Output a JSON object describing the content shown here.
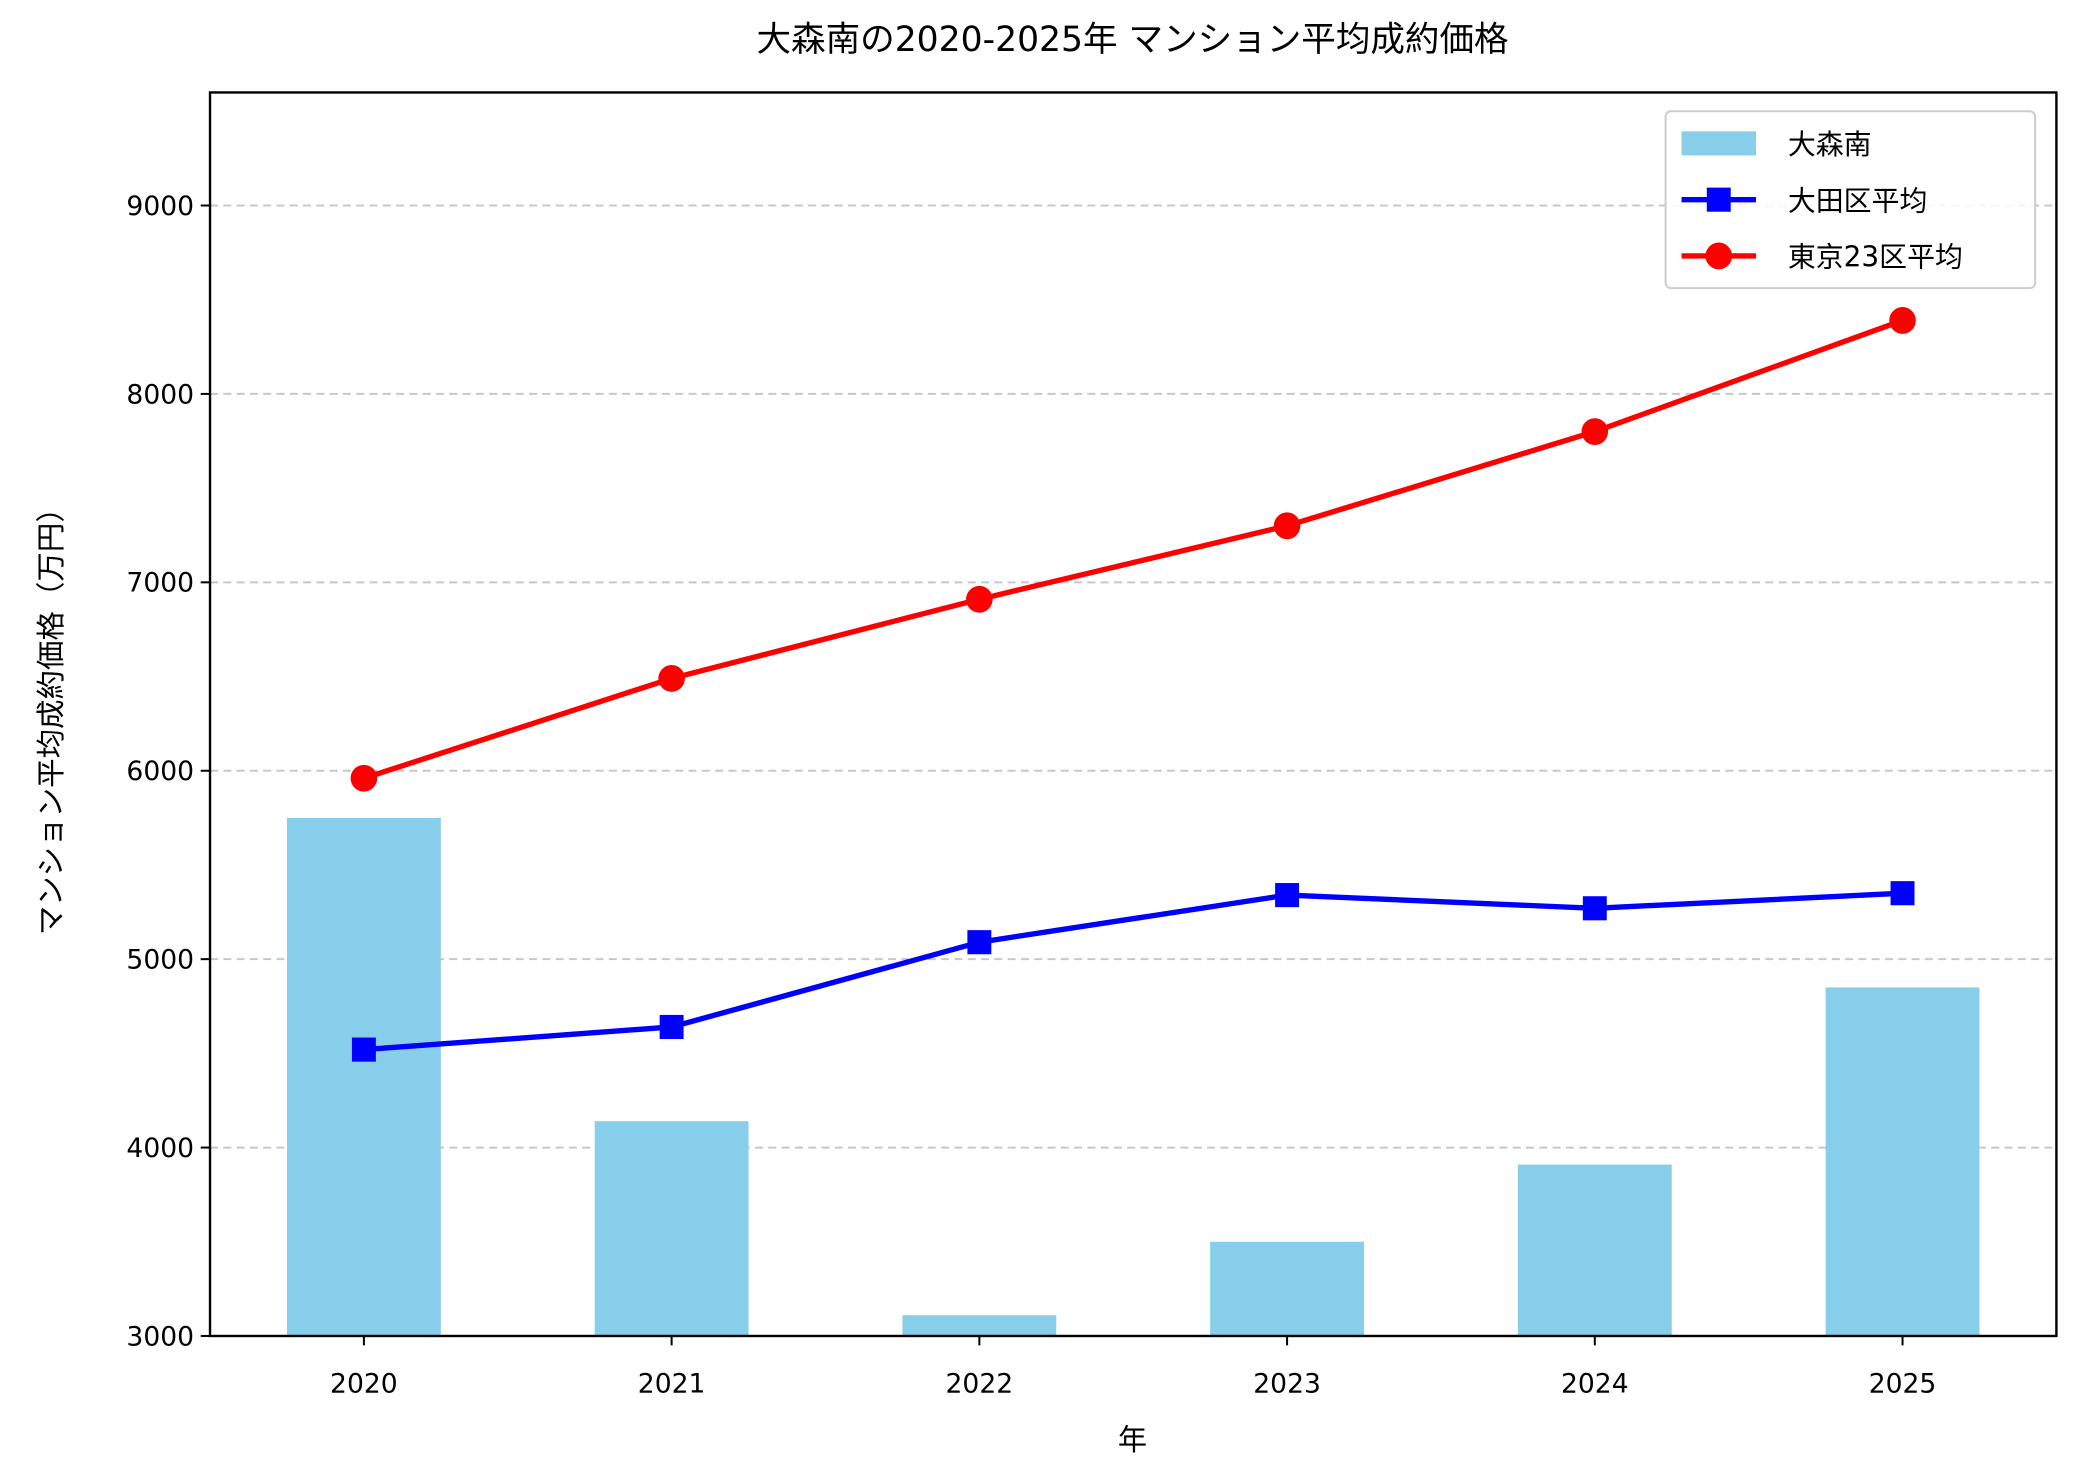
{
  "chart_data": {
    "type": "combo",
    "title": "大森南の2020-2025年 マンション平均成約価格",
    "xlabel": "年",
    "ylabel": "マンション平均成約価格（万円）",
    "categories": [
      "2020",
      "2021",
      "2022",
      "2023",
      "2024",
      "2025"
    ],
    "series": [
      {
        "name": "大森南",
        "type": "bar",
        "color": "#87ceeb",
        "values": [
          5750,
          4140,
          3110,
          3500,
          3910,
          4850
        ]
      },
      {
        "name": "大田区平均",
        "type": "line",
        "marker": "square",
        "color": "#0000ff",
        "values": [
          4520,
          4640,
          5090,
          5340,
          5270,
          5350
        ]
      },
      {
        "name": "東京23区平均",
        "type": "line",
        "marker": "circle",
        "color": "#ff0000",
        "values": [
          5960,
          6490,
          6910,
          7300,
          7800,
          8390
        ]
      }
    ],
    "ylim": [
      3000,
      9600
    ],
    "yticks": [
      3000,
      4000,
      5000,
      6000,
      7000,
      8000,
      9000
    ],
    "grid": "y",
    "legend": "upper right"
  }
}
